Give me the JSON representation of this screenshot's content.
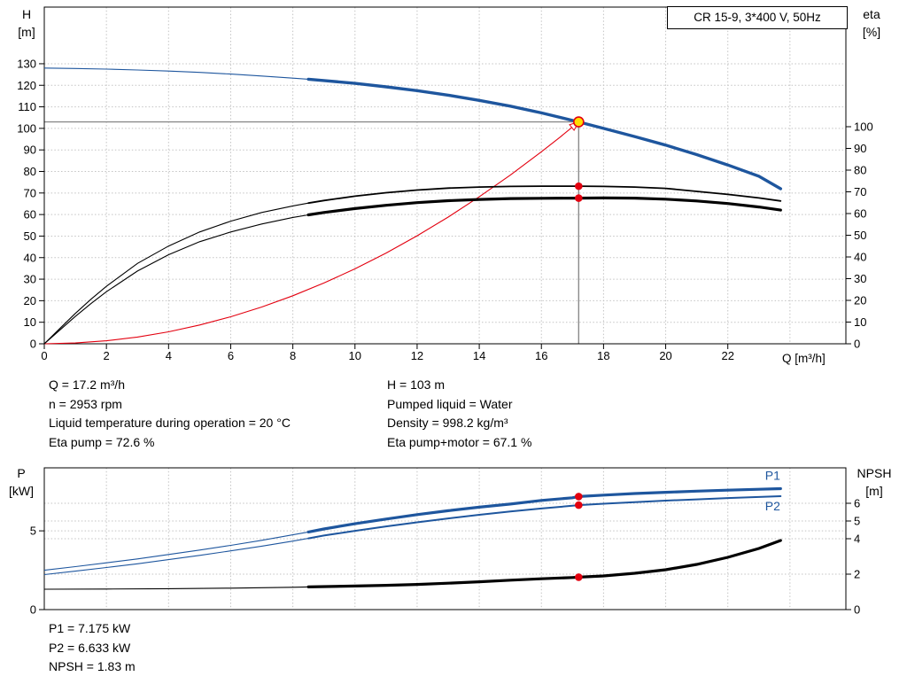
{
  "colors": {
    "blue": "#1e569e",
    "red": "#e3000f",
    "duty_fill": "#ffdd00",
    "gray": "#8a8a8a",
    "grid": "#c3c3c3",
    "black": "#000000"
  },
  "info": {
    "left": [
      "Q = 17.2 m³/h",
      "n = 2953 rpm",
      "Liquid temperature during operation = 20 °C",
      "Eta pump = 72.6 %"
    ],
    "right": [
      "H = 103 m",
      "Pumped liquid = Water",
      "Density = 998.2 kg/m³",
      "Eta pump+motor = 67.1 %"
    ]
  },
  "results": [
    "P1 = 7.175 kW",
    "P2 = 6.633 kW",
    "NPSH = 1.83 m"
  ],
  "chart_data": [
    {
      "type": "line",
      "name": "qh-eta-chart",
      "title": "CR 15-9, 3*400 V, 50Hz",
      "x_axis": {
        "label": "Q [m³/h]",
        "range": [
          0,
          25.8
        ],
        "tick_labels": [
          0,
          2,
          4,
          6,
          8,
          10,
          12,
          14,
          16,
          18,
          20,
          22
        ],
        "grid": [
          2,
          4,
          6,
          8,
          10,
          12,
          14,
          16,
          18,
          20,
          22,
          24
        ]
      },
      "y_left": {
        "label_line1": "H",
        "label_line2": "[m]",
        "range": [
          0,
          156.3
        ],
        "ticks": [
          0,
          10,
          20,
          30,
          40,
          50,
          60,
          70,
          80,
          90,
          100,
          110,
          120,
          130
        ],
        "grid": [
          10,
          20,
          30,
          40,
          50,
          60,
          70,
          80,
          90,
          100,
          110,
          120,
          130
        ]
      },
      "y_right": {
        "label_line1": "eta",
        "label_line2": "[%]",
        "range": [
          0,
          155.1
        ],
        "ticks": [
          0,
          10,
          20,
          30,
          40,
          50,
          60,
          70,
          80,
          90,
          100
        ],
        "grid": []
      },
      "crosshair": {
        "q": 17.2,
        "value": 103,
        "axis": "left"
      },
      "series": [
        {
          "name": "system-curve",
          "axis": "left",
          "color": "#e3000f",
          "width": 1.1,
          "arrow_end": true,
          "points": [
            [
              0,
              0
            ],
            [
              1,
              0.35
            ],
            [
              2,
              1.39
            ],
            [
              3,
              3.13
            ],
            [
              4,
              5.57
            ],
            [
              5,
              8.7
            ],
            [
              6,
              12.53
            ],
            [
              7,
              17.06
            ],
            [
              8,
              22.28
            ],
            [
              9,
              28.2
            ],
            [
              10,
              34.81
            ],
            [
              11,
              42.12
            ],
            [
              12,
              50.13
            ],
            [
              13,
              58.83
            ],
            [
              14,
              68.23
            ],
            [
              15,
              78.33
            ],
            [
              16,
              89.12
            ],
            [
              16.6,
              95.93
            ],
            [
              17.2,
              103
            ]
          ]
        },
        {
          "name": "qh",
          "axis": "left",
          "color": "#1e569e",
          "width": 3.4,
          "thin_width": 1.1,
          "split_q": 8.5,
          "points": [
            [
              0,
              128
            ],
            [
              1,
              127.8
            ],
            [
              2,
              127.5
            ],
            [
              3,
              127.1
            ],
            [
              4,
              126.6
            ],
            [
              5,
              126
            ],
            [
              6,
              125.2
            ],
            [
              7,
              124.3
            ],
            [
              8,
              123.3
            ],
            [
              8.5,
              122.8
            ],
            [
              9,
              122.2
            ],
            [
              10,
              120.9
            ],
            [
              11,
              119.3
            ],
            [
              12,
              117.5
            ],
            [
              13,
              115.4
            ],
            [
              14,
              113
            ],
            [
              15,
              110.3
            ],
            [
              16,
              107.2
            ],
            [
              17,
              103.7
            ],
            [
              17.2,
              103
            ],
            [
              18,
              100
            ],
            [
              19,
              96.2
            ],
            [
              20,
              92.2
            ],
            [
              21,
              87.8
            ],
            [
              22,
              83
            ],
            [
              23,
              77.8
            ],
            [
              23.7,
              72
            ]
          ]
        },
        {
          "name": "eta-pump",
          "axis": "right",
          "color": "#000000",
          "width": 1.8,
          "thin_width": 1.1,
          "split_q": 8.5,
          "points": [
            [
              0,
              0
            ],
            [
              0.5,
              7
            ],
            [
              1,
              14
            ],
            [
              1.5,
              20.5
            ],
            [
              2,
              26.5
            ],
            [
              3,
              37
            ],
            [
              4,
              45
            ],
            [
              5,
              51.5
            ],
            [
              6,
              56.5
            ],
            [
              7,
              60.5
            ],
            [
              8,
              63.5
            ],
            [
              8.5,
              64.8
            ],
            [
              9,
              66
            ],
            [
              10,
              68
            ],
            [
              11,
              69.6
            ],
            [
              12,
              70.8
            ],
            [
              13,
              71.7
            ],
            [
              14,
              72.2
            ],
            [
              15,
              72.5
            ],
            [
              16,
              72.6
            ],
            [
              17.2,
              72.6
            ],
            [
              18,
              72.5
            ],
            [
              19,
              72.2
            ],
            [
              20,
              71.6
            ],
            [
              21,
              70.2
            ],
            [
              22,
              68.8
            ],
            [
              23,
              67.2
            ],
            [
              23.7,
              65.8
            ]
          ]
        },
        {
          "name": "eta-pump-motor",
          "axis": "right",
          "color": "#000000",
          "width": 3.2,
          "thin_width": 1.1,
          "split_q": 8.5,
          "points": [
            [
              0,
              0
            ],
            [
              0.5,
              6.3
            ],
            [
              1,
              12.6
            ],
            [
              1.5,
              18.5
            ],
            [
              2,
              24
            ],
            [
              3,
              33.5
            ],
            [
              4,
              41
            ],
            [
              5,
              47
            ],
            [
              6,
              51.5
            ],
            [
              7,
              55.2
            ],
            [
              8,
              58.2
            ],
            [
              8.5,
              59.4
            ],
            [
              9,
              60.5
            ],
            [
              10,
              62.3
            ],
            [
              11,
              63.8
            ],
            [
              12,
              65
            ],
            [
              13,
              65.9
            ],
            [
              14,
              66.5
            ],
            [
              15,
              66.9
            ],
            [
              16,
              67
            ],
            [
              17,
              67.1
            ],
            [
              17.2,
              67.1
            ],
            [
              18,
              67.2
            ],
            [
              19,
              67.1
            ],
            [
              20,
              66.6
            ],
            [
              21,
              65.8
            ],
            [
              22,
              64.6
            ],
            [
              23,
              63
            ],
            [
              23.7,
              61.6
            ]
          ]
        }
      ],
      "markers": [
        {
          "type": "point",
          "q": 17.2,
          "v": 72.6,
          "axis": "right"
        },
        {
          "type": "point",
          "q": 17.2,
          "v": 67.1,
          "axis": "right"
        },
        {
          "type": "duty",
          "q": 17.2,
          "v": 103,
          "axis": "left"
        }
      ]
    },
    {
      "type": "line",
      "name": "power-npsh-chart",
      "x_axis": {
        "label": "",
        "range": [
          0,
          25.8
        ],
        "tick_labels": [],
        "grid": [
          2,
          4,
          6,
          8,
          10,
          12,
          14,
          16,
          18,
          20,
          22,
          24
        ]
      },
      "y_left": {
        "label_line1": "P",
        "label_line2": "[kW]",
        "range": [
          0,
          9
        ],
        "ticks": [
          0,
          5
        ],
        "grid": [
          5
        ]
      },
      "y_right": {
        "label_line1": "NPSH",
        "label_line2": "[m]",
        "range": [
          0,
          8
        ],
        "ticks": [
          0,
          2,
          4,
          5,
          6
        ],
        "grid": [
          2,
          4,
          5,
          6
        ]
      },
      "series": [
        {
          "name": "p1",
          "axis": "left",
          "color": "#1e569e",
          "width": 3.2,
          "thin_width": 1.1,
          "split_q": 8.5,
          "label": {
            "text": "P1",
            "at": [
              23.2,
              8.25
            ]
          },
          "points": [
            [
              0,
              2.5
            ],
            [
              1,
              2.73
            ],
            [
              2,
              2.97
            ],
            [
              3,
              3.22
            ],
            [
              4,
              3.5
            ],
            [
              5,
              3.78
            ],
            [
              6,
              4.08
            ],
            [
              7,
              4.4
            ],
            [
              8,
              4.75
            ],
            [
              8.5,
              4.93
            ],
            [
              9,
              5.12
            ],
            [
              10,
              5.45
            ],
            [
              11,
              5.75
            ],
            [
              12,
              6.03
            ],
            [
              13,
              6.28
            ],
            [
              14,
              6.5
            ],
            [
              15,
              6.7
            ],
            [
              16,
              6.93
            ],
            [
              17,
              7.1
            ],
            [
              17.2,
              7.175
            ],
            [
              18,
              7.27
            ],
            [
              19,
              7.37
            ],
            [
              20,
              7.45
            ],
            [
              21,
              7.52
            ],
            [
              22,
              7.58
            ],
            [
              23,
              7.64
            ],
            [
              23.7,
              7.68
            ]
          ]
        },
        {
          "name": "p2",
          "axis": "left",
          "color": "#1e569e",
          "width": 2,
          "thin_width": 1.1,
          "split_q": 8.5,
          "label": {
            "text": "P2",
            "at": [
              23.2,
              6.3
            ]
          },
          "points": [
            [
              0,
              2.22
            ],
            [
              1,
              2.44
            ],
            [
              2,
              2.67
            ],
            [
              3,
              2.91
            ],
            [
              4,
              3.17
            ],
            [
              5,
              3.44
            ],
            [
              6,
              3.73
            ],
            [
              7,
              4.03
            ],
            [
              8,
              4.35
            ],
            [
              8.5,
              4.52
            ],
            [
              9,
              4.7
            ],
            [
              10,
              5
            ],
            [
              11,
              5.28
            ],
            [
              12,
              5.54
            ],
            [
              13,
              5.79
            ],
            [
              14,
              6.02
            ],
            [
              15,
              6.23
            ],
            [
              16,
              6.42
            ],
            [
              17,
              6.59
            ],
            [
              17.2,
              6.633
            ],
            [
              18,
              6.72
            ],
            [
              19,
              6.82
            ],
            [
              20,
              6.92
            ],
            [
              21,
              7
            ],
            [
              22,
              7.08
            ],
            [
              23,
              7.15
            ],
            [
              23.7,
              7.2
            ]
          ]
        },
        {
          "name": "npsh",
          "axis": "right",
          "color": "#000000",
          "width": 3.2,
          "thin_width": 1.1,
          "split_q": 8.5,
          "points": [
            [
              0,
              1.15
            ],
            [
              2,
              1.16
            ],
            [
              4,
              1.18
            ],
            [
              6,
              1.21
            ],
            [
              8,
              1.26
            ],
            [
              8.5,
              1.28
            ],
            [
              10,
              1.33
            ],
            [
              11,
              1.37
            ],
            [
              12,
              1.42
            ],
            [
              13,
              1.49
            ],
            [
              14,
              1.57
            ],
            [
              15,
              1.66
            ],
            [
              16,
              1.74
            ],
            [
              17,
              1.81
            ],
            [
              17.2,
              1.83
            ],
            [
              18,
              1.9
            ],
            [
              19,
              2.05
            ],
            [
              20,
              2.25
            ],
            [
              21,
              2.55
            ],
            [
              22,
              2.95
            ],
            [
              23,
              3.45
            ],
            [
              23.7,
              3.9
            ]
          ]
        }
      ],
      "markers": [
        {
          "type": "point",
          "q": 17.2,
          "v": 7.175,
          "axis": "left"
        },
        {
          "type": "point",
          "q": 17.2,
          "v": 6.633,
          "axis": "left"
        },
        {
          "type": "point",
          "q": 17.2,
          "v": 1.83,
          "axis": "right"
        }
      ]
    }
  ]
}
